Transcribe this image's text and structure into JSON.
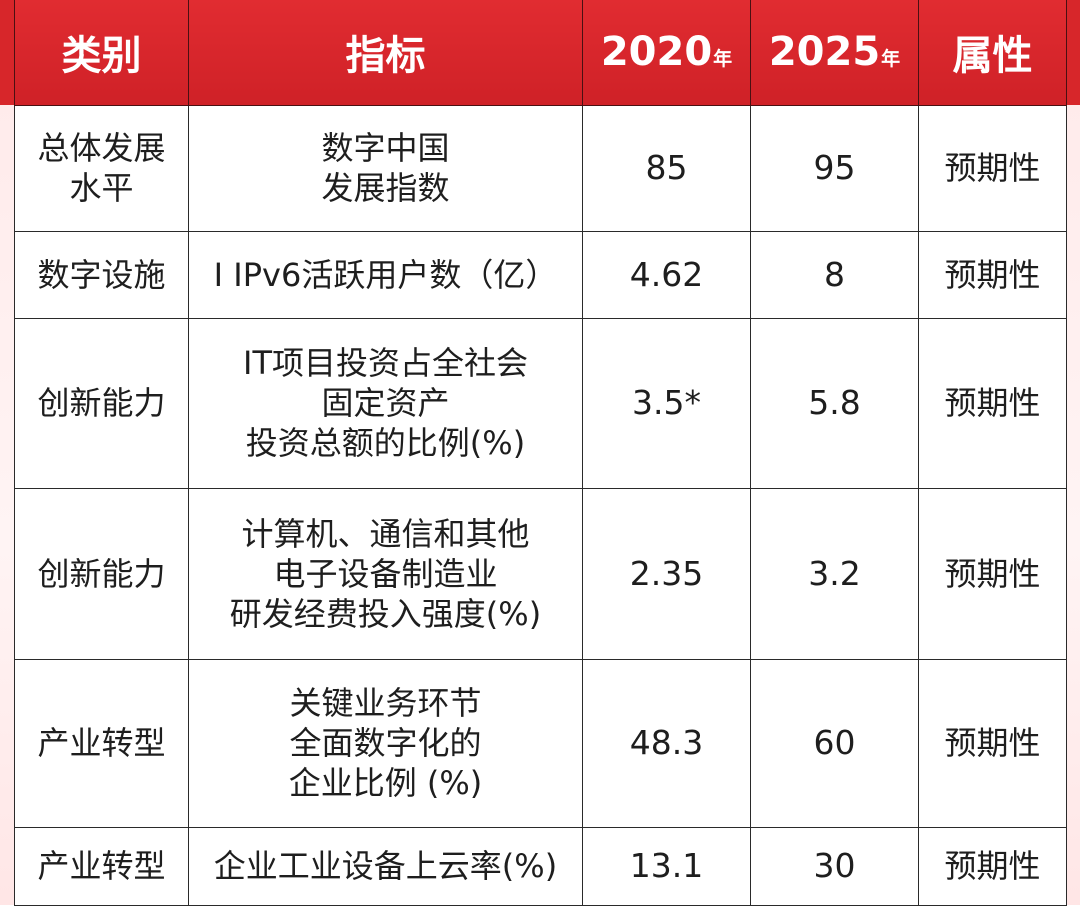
{
  "header": {
    "category": "类别",
    "indicator": "指标",
    "year1": "2020",
    "year2": "2025",
    "year_suffix": "年",
    "attribute": "属性"
  },
  "rows": [
    {
      "category": "总体发展\n水平",
      "indicator": "数字中国\n发展指数",
      "v2020": "85",
      "v2025": "95",
      "attribute": "预期性"
    },
    {
      "category": "数字设施",
      "indicator": "I IPv6活跃用户数（亿）",
      "v2020": "4.62",
      "v2025": "8",
      "attribute": "预期性"
    },
    {
      "category": "创新能力",
      "indicator": "IT项目投资占全社会\n固定资产\n投资总额的比例(%)",
      "v2020": "3.5*",
      "v2025": "5.8",
      "attribute": "预期性"
    },
    {
      "category": "创新能力",
      "indicator": "计算机、通信和其他\n电子设备制造业\n研发经费投入强度(%)",
      "v2020": "2.35",
      "v2025": "3.2",
      "attribute": "预期性"
    },
    {
      "category": "产业转型",
      "indicator": "关键业务环节\n全面数字化的\n企业比例 (%)",
      "v2020": "48.3",
      "v2025": "60",
      "attribute": "预期性"
    },
    {
      "category": "产业转型",
      "indicator": "企业工业设备上云率(%)",
      "v2020": "13.1",
      "v2025": "30",
      "attribute": "预期性"
    }
  ],
  "colors": {
    "header_red": "#d3242a",
    "header_text": "#ffffff",
    "body_text": "#1e1e1e",
    "border": "#2a2a2a"
  }
}
